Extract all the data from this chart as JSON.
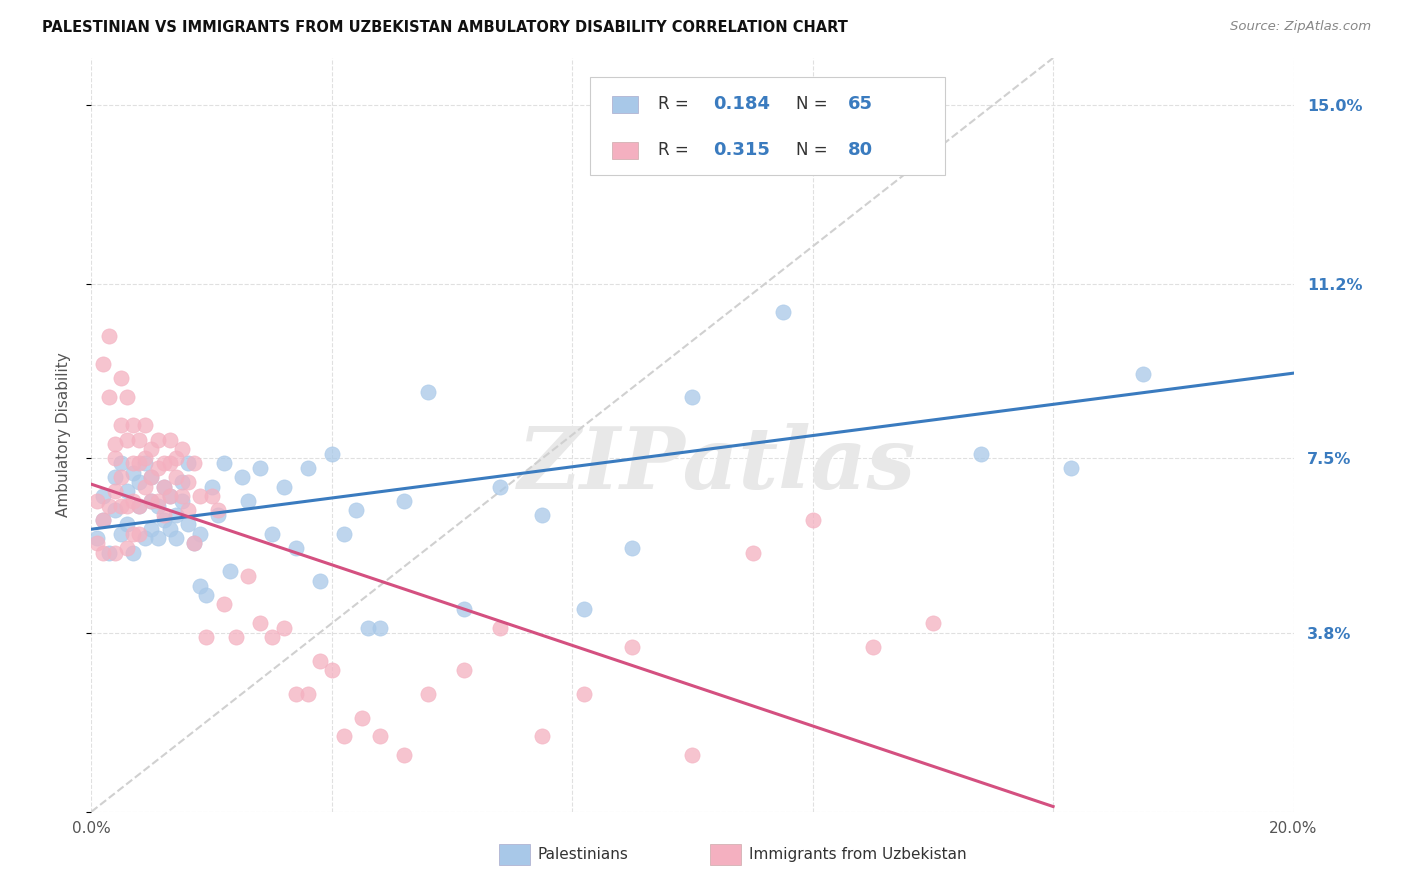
{
  "title": "PALESTINIAN VS IMMIGRANTS FROM UZBEKISTAN AMBULATORY DISABILITY CORRELATION CHART",
  "source": "Source: ZipAtlas.com",
  "ylabel": "Ambulatory Disability",
  "xlim": [
    0.0,
    0.2
  ],
  "ylim": [
    0.0,
    0.16
  ],
  "ytick_vals": [
    0.0,
    0.038,
    0.075,
    0.112,
    0.15
  ],
  "ytick_labels_right": [
    "",
    "3.8%",
    "7.5%",
    "11.2%",
    "15.0%"
  ],
  "blue_R": 0.184,
  "blue_N": 65,
  "pink_R": 0.315,
  "pink_N": 80,
  "blue_color": "#a8c8e8",
  "pink_color": "#f4b0c0",
  "blue_line_color": "#3a7bbf",
  "pink_line_color": "#d45080",
  "diagonal_color": "#d0d0d0",
  "watermark": "ZIPatlas",
  "legend_label_blue": "Palestinians",
  "legend_label_pink": "Immigrants from Uzbekistan",
  "blue_x": [
    0.001,
    0.002,
    0.002,
    0.003,
    0.004,
    0.004,
    0.005,
    0.005,
    0.006,
    0.006,
    0.007,
    0.007,
    0.008,
    0.008,
    0.009,
    0.009,
    0.01,
    0.01,
    0.01,
    0.011,
    0.011,
    0.012,
    0.012,
    0.013,
    0.013,
    0.014,
    0.014,
    0.015,
    0.015,
    0.016,
    0.016,
    0.017,
    0.018,
    0.018,
    0.019,
    0.02,
    0.021,
    0.022,
    0.023,
    0.025,
    0.026,
    0.028,
    0.03,
    0.032,
    0.034,
    0.036,
    0.038,
    0.04,
    0.042,
    0.044,
    0.046,
    0.048,
    0.052,
    0.056,
    0.062,
    0.068,
    0.075,
    0.082,
    0.09,
    0.1,
    0.115,
    0.13,
    0.148,
    0.163,
    0.175
  ],
  "blue_y": [
    0.058,
    0.062,
    0.067,
    0.055,
    0.064,
    0.071,
    0.059,
    0.074,
    0.061,
    0.068,
    0.055,
    0.072,
    0.065,
    0.07,
    0.058,
    0.074,
    0.06,
    0.066,
    0.071,
    0.058,
    0.065,
    0.062,
    0.069,
    0.06,
    0.067,
    0.063,
    0.058,
    0.066,
    0.07,
    0.061,
    0.074,
    0.057,
    0.059,
    0.048,
    0.046,
    0.069,
    0.063,
    0.074,
    0.051,
    0.071,
    0.066,
    0.073,
    0.059,
    0.069,
    0.056,
    0.073,
    0.049,
    0.076,
    0.059,
    0.064,
    0.039,
    0.039,
    0.066,
    0.089,
    0.043,
    0.069,
    0.063,
    0.043,
    0.056,
    0.088,
    0.106,
    0.138,
    0.076,
    0.073,
    0.093
  ],
  "pink_x": [
    0.001,
    0.001,
    0.002,
    0.002,
    0.002,
    0.003,
    0.003,
    0.003,
    0.004,
    0.004,
    0.004,
    0.004,
    0.005,
    0.005,
    0.005,
    0.005,
    0.006,
    0.006,
    0.006,
    0.006,
    0.007,
    0.007,
    0.007,
    0.007,
    0.008,
    0.008,
    0.008,
    0.008,
    0.009,
    0.009,
    0.009,
    0.01,
    0.01,
    0.01,
    0.011,
    0.011,
    0.011,
    0.012,
    0.012,
    0.012,
    0.013,
    0.013,
    0.013,
    0.014,
    0.014,
    0.015,
    0.015,
    0.016,
    0.016,
    0.017,
    0.017,
    0.018,
    0.019,
    0.02,
    0.021,
    0.022,
    0.024,
    0.026,
    0.028,
    0.03,
    0.032,
    0.034,
    0.036,
    0.038,
    0.04,
    0.042,
    0.045,
    0.048,
    0.052,
    0.056,
    0.062,
    0.068,
    0.075,
    0.082,
    0.09,
    0.1,
    0.11,
    0.12,
    0.13,
    0.14
  ],
  "pink_y": [
    0.057,
    0.066,
    0.055,
    0.062,
    0.095,
    0.065,
    0.088,
    0.101,
    0.055,
    0.068,
    0.078,
    0.075,
    0.092,
    0.065,
    0.082,
    0.071,
    0.065,
    0.079,
    0.088,
    0.056,
    0.074,
    0.066,
    0.082,
    0.059,
    0.065,
    0.074,
    0.079,
    0.059,
    0.075,
    0.069,
    0.082,
    0.071,
    0.077,
    0.066,
    0.079,
    0.073,
    0.066,
    0.069,
    0.074,
    0.063,
    0.079,
    0.074,
    0.067,
    0.071,
    0.075,
    0.077,
    0.067,
    0.064,
    0.07,
    0.074,
    0.057,
    0.067,
    0.037,
    0.067,
    0.064,
    0.044,
    0.037,
    0.05,
    0.04,
    0.037,
    0.039,
    0.025,
    0.025,
    0.032,
    0.03,
    0.016,
    0.02,
    0.016,
    0.012,
    0.025,
    0.03,
    0.039,
    0.016,
    0.025,
    0.035,
    0.012,
    0.055,
    0.062,
    0.035,
    0.04
  ]
}
